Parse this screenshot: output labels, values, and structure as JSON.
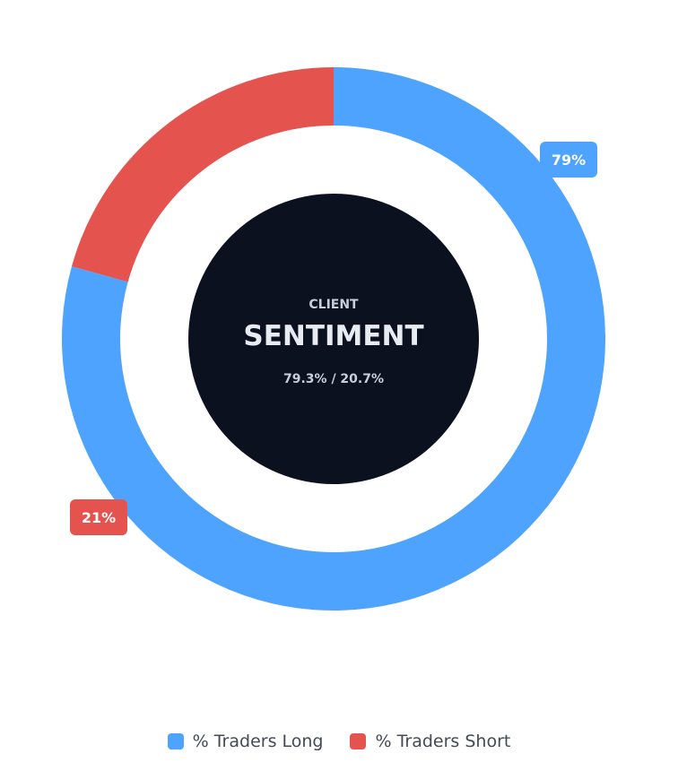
{
  "center": {
    "kicker": "CLIENT",
    "title": "SENTIMENT",
    "ratio": "79.3% / 20.7%"
  },
  "colors": {
    "long": "#4da3fd",
    "short": "#e5534f",
    "center": "#0c1120",
    "center_text": "#e8ebf2"
  },
  "chart_data": {
    "type": "pie",
    "variant": "doughnut",
    "series": [
      {
        "name": "% Traders Long",
        "value": 79.3,
        "label": "79%"
      },
      {
        "name": "% Traders Short",
        "value": 20.7,
        "label": "21%"
      }
    ],
    "start_angle_deg": 270,
    "direction": "clockwise",
    "legend": "bottom"
  }
}
